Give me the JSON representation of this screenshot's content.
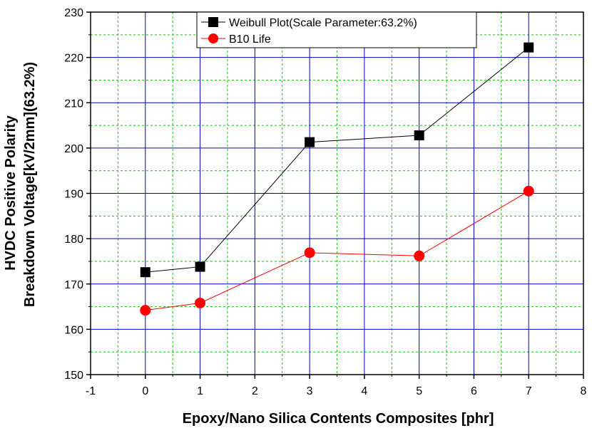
{
  "chart_data": {
    "type": "line",
    "xlabel": "Epoxy/Nano Silica Contents Composites [phr]",
    "ylabel_line1": "HVDC Positive Polarity",
    "ylabel_line2": "Breakdown Voltage[kV/2mm](63.2%)",
    "xlim": [
      -1,
      8
    ],
    "ylim": [
      150,
      230
    ],
    "x_ticks": [
      -1,
      0,
      1,
      2,
      3,
      4,
      5,
      6,
      7,
      8
    ],
    "y_ticks": [
      150,
      160,
      170,
      180,
      190,
      200,
      210,
      220,
      230
    ],
    "x_minor_step": 0.5,
    "y_minor_step": 5,
    "grid": true,
    "legend_position": "top-center",
    "colors": {
      "major_grid": "#0000cc",
      "minor_grid": "#00cc00"
    },
    "series": [
      {
        "name": "Weibull Plot(Scale Parameter:63.2%)",
        "marker": "square",
        "marker_color": "#000000",
        "line_color": "#000000",
        "x": [
          0,
          1,
          3,
          5,
          7
        ],
        "y": [
          172.6,
          173.8,
          201.3,
          202.8,
          222.2
        ]
      },
      {
        "name": "B10 Life",
        "marker": "circle",
        "marker_color": "#ff0000",
        "line_color": "#ff0000",
        "x": [
          0,
          1,
          3,
          5,
          7
        ],
        "y": [
          164.2,
          165.8,
          176.9,
          176.2,
          190.5
        ]
      }
    ]
  }
}
